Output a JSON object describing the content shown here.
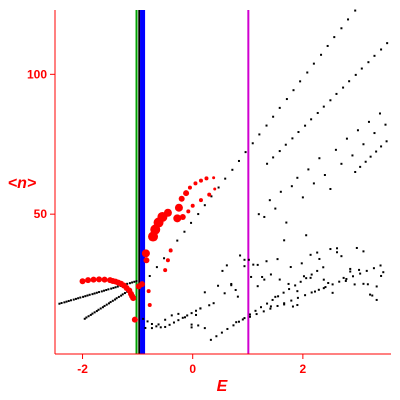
{
  "chart_data": {
    "type": "scatter",
    "xlabel": "E",
    "ylabel": "<n>",
    "xlim": [
      -2.5,
      3.6
    ],
    "ylim": [
      0,
      123
    ],
    "x_ticks": [
      {
        "value": -2,
        "label": "-2"
      },
      {
        "value": 0,
        "label": "0"
      },
      {
        "value": 2,
        "label": "2"
      }
    ],
    "y_ticks": [
      {
        "value": 50,
        "label": "50"
      },
      {
        "value": 100,
        "label": "100"
      }
    ],
    "vertical_lines": [
      {
        "x": -1.02,
        "color": "#00a000",
        "width": 2
      },
      {
        "x": -0.97,
        "color": "#000000",
        "width": 2
      },
      {
        "x": -0.91,
        "color": "#0000ff",
        "width": 5
      },
      {
        "x": 1.01,
        "color": "#d000d0",
        "width": 2
      }
    ],
    "colors": {
      "axis": "#ff0000",
      "black_points": "#000000",
      "red_points": "#ff0000"
    },
    "red_points": [
      [
        -2.0,
        26.0,
        3
      ],
      [
        -1.9,
        26.4,
        3
      ],
      [
        -1.8,
        26.6,
        3
      ],
      [
        -1.7,
        26.7,
        3
      ],
      [
        -1.6,
        26.6,
        3
      ],
      [
        -1.5,
        26.4,
        3
      ],
      [
        -1.45,
        26.1,
        3
      ],
      [
        -1.4,
        25.9,
        3
      ],
      [
        -1.35,
        25.5,
        3
      ],
      [
        -1.3,
        25.1,
        3
      ],
      [
        -1.25,
        24.5,
        3
      ],
      [
        -1.2,
        23.6,
        3
      ],
      [
        -1.15,
        22.7,
        3
      ],
      [
        -1.12,
        21.5,
        3
      ],
      [
        -1.1,
        20.7,
        3
      ],
      [
        -1.08,
        20.0,
        3
      ],
      [
        -1.05,
        12.3,
        3
      ],
      [
        -0.98,
        24.2,
        3
      ],
      [
        -0.92,
        25.0,
        3
      ],
      [
        -0.85,
        36.0,
        4
      ],
      [
        -0.84,
        33.5,
        3
      ],
      [
        -0.8,
        22.5,
        2
      ],
      [
        -0.78,
        17.5,
        2
      ],
      [
        -0.72,
        42.0,
        5
      ],
      [
        -0.68,
        44.5,
        5
      ],
      [
        -0.62,
        47.0,
        5
      ],
      [
        -0.55,
        49.0,
        5
      ],
      [
        -0.45,
        50.5,
        4
      ],
      [
        -0.5,
        30.0,
        2
      ],
      [
        -0.45,
        33.5,
        2
      ],
      [
        -0.4,
        37.0,
        2
      ],
      [
        -0.28,
        48.5,
        4
      ],
      [
        -0.25,
        52.3,
        4
      ],
      [
        -0.2,
        55.5,
        3
      ],
      [
        -0.18,
        49.0,
        3
      ],
      [
        -0.12,
        57.5,
        3
      ],
      [
        -0.08,
        51.0,
        2
      ],
      [
        -0.05,
        59.5,
        2
      ],
      [
        0.0,
        53.0,
        2
      ],
      [
        0.05,
        61.0,
        2
      ],
      [
        0.15,
        62.0,
        2
      ],
      [
        0.15,
        55.0,
        2
      ],
      [
        0.25,
        62.8,
        2
      ],
      [
        0.3,
        57.0,
        2
      ],
      [
        0.38,
        63.0,
        1.5
      ],
      [
        0.4,
        59.0,
        1.5
      ]
    ],
    "black_points": [
      [
        -2.42,
        17.98
      ],
      [
        -2.38,
        18.23
      ],
      [
        -2.33,
        18.47
      ],
      [
        -2.29,
        18.72
      ],
      [
        -2.25,
        18.96
      ],
      [
        -2.21,
        19.21
      ],
      [
        -2.16,
        19.45
      ],
      [
        -2.12,
        19.7
      ],
      [
        -2.08,
        19.94
      ],
      [
        -2.04,
        20.19
      ],
      [
        -1.99,
        20.43
      ],
      [
        -1.95,
        20.68
      ],
      [
        -1.91,
        20.92
      ],
      [
        -1.87,
        21.17
      ],
      [
        -1.82,
        21.41
      ],
      [
        -1.78,
        21.66
      ],
      [
        -1.74,
        21.9
      ],
      [
        -1.7,
        22.15
      ],
      [
        -1.65,
        22.39
      ],
      [
        -1.61,
        22.64
      ],
      [
        -1.57,
        22.88
      ],
      [
        -1.53,
        23.13
      ],
      [
        -1.48,
        23.37
      ],
      [
        -1.44,
        23.62
      ],
      [
        -1.4,
        23.86
      ],
      [
        -1.36,
        24.11
      ],
      [
        -1.31,
        24.35
      ],
      [
        -1.27,
        24.6
      ],
      [
        -1.23,
        24.84
      ],
      [
        -1.19,
        25.09
      ],
      [
        -1.14,
        25.33
      ],
      [
        -1.1,
        25.58
      ],
      [
        -1.06,
        25.82
      ],
      [
        -1.02,
        26.07
      ],
      [
        -1.96,
        12.59
      ],
      [
        -1.93,
        13.05
      ],
      [
        -1.89,
        13.51
      ],
      [
        -1.85,
        13.97
      ],
      [
        -1.82,
        14.43
      ],
      [
        -1.78,
        14.89
      ],
      [
        -1.74,
        15.35
      ],
      [
        -1.71,
        15.81
      ],
      [
        -1.67,
        16.27
      ],
      [
        -1.63,
        16.73
      ],
      [
        -1.6,
        17.19
      ],
      [
        -1.56,
        17.65
      ],
      [
        -1.52,
        18.11
      ],
      [
        -1.49,
        18.57
      ],
      [
        -1.45,
        19.03
      ],
      [
        -1.41,
        19.49
      ],
      [
        -1.38,
        19.95
      ],
      [
        -1.34,
        20.41
      ],
      [
        -1.3,
        20.87
      ],
      [
        -1.27,
        21.33
      ],
      [
        -1.23,
        21.79
      ],
      [
        -1.19,
        22.25
      ],
      [
        -0.78,
        27.89
      ],
      [
        -0.65,
        31.07
      ],
      [
        -0.52,
        34.23
      ],
      [
        -0.4,
        37.39
      ],
      [
        -0.28,
        40.55
      ],
      [
        -0.15,
        43.72
      ],
      [
        -0.03,
        46.88
      ],
      [
        0.1,
        50.04
      ],
      [
        0.22,
        53.21
      ],
      [
        0.34,
        56.37
      ],
      [
        0.47,
        59.53
      ],
      [
        0.59,
        62.7
      ],
      [
        0.72,
        65.86
      ],
      [
        0.84,
        69.02
      ],
      [
        0.96,
        72.19
      ],
      [
        1.09,
        75.35
      ],
      [
        1.21,
        78.51
      ],
      [
        1.34,
        81.68
      ],
      [
        1.46,
        84.84
      ],
      [
        1.58,
        88.0
      ],
      [
        1.71,
        91.16
      ],
      [
        1.83,
        94.33
      ],
      [
        1.95,
        97.49
      ],
      [
        2.08,
        100.65
      ],
      [
        2.2,
        103.82
      ],
      [
        2.33,
        106.98
      ],
      [
        2.45,
        110.14
      ],
      [
        2.57,
        113.31
      ],
      [
        2.7,
        116.47
      ],
      [
        2.82,
        119.63
      ],
      [
        2.95,
        122.8
      ],
      [
        1.35,
        68.02
      ],
      [
        1.46,
        70.29
      ],
      [
        1.58,
        72.56
      ],
      [
        1.69,
        74.83
      ],
      [
        1.81,
        77.1
      ],
      [
        1.92,
        79.37
      ],
      [
        2.04,
        81.64
      ],
      [
        2.15,
        83.91
      ],
      [
        2.27,
        86.18
      ],
      [
        2.38,
        88.45
      ],
      [
        2.5,
        90.72
      ],
      [
        2.61,
        92.99
      ],
      [
        2.73,
        95.26
      ],
      [
        2.84,
        97.53
      ],
      [
        2.96,
        99.8
      ],
      [
        3.07,
        102.07
      ],
      [
        3.19,
        104.34
      ],
      [
        3.3,
        106.61
      ],
      [
        3.42,
        108.88
      ],
      [
        3.53,
        111.15
      ],
      [
        2.95,
        65.08
      ],
      [
        3.04,
        66.91
      ],
      [
        3.14,
        68.74
      ],
      [
        3.23,
        70.56
      ],
      [
        3.33,
        72.39
      ],
      [
        3.42,
        74.22
      ],
      [
        3.52,
        76.05
      ],
      [
        -0.9,
        12.56
      ],
      [
        -0.82,
        11.66
      ],
      [
        -0.74,
        10.73
      ],
      [
        -0.66,
        9.89
      ],
      [
        -0.58,
        9.54
      ],
      [
        -0.5,
        9.67
      ],
      [
        -0.42,
        10.43
      ],
      [
        -0.34,
        11.26
      ],
      [
        -0.26,
        12.1
      ],
      [
        -0.18,
        12.94
      ],
      [
        -0.1,
        13.78
      ],
      [
        -0.02,
        14.62
      ],
      [
        0.06,
        15.46
      ],
      [
        0.14,
        16.3
      ],
      [
        -0.86,
        9.31
      ],
      [
        -0.74,
        9.26
      ],
      [
        -0.62,
        10.58
      ],
      [
        -0.5,
        12.25
      ],
      [
        -0.38,
        13.81
      ],
      [
        -0.26,
        14.34
      ],
      [
        -0.14,
        13.13
      ],
      [
        -0.02,
        9.52
      ],
      [
        0.1,
        10.21
      ],
      [
        0.22,
        9.26
      ],
      [
        0.33,
        5.06
      ],
      [
        0.43,
        6.35
      ],
      [
        0.53,
        7.65
      ],
      [
        0.63,
        8.95
      ],
      [
        0.74,
        10.25
      ],
      [
        0.84,
        11.55
      ],
      [
        0.94,
        12.84
      ],
      [
        1.04,
        14.14
      ],
      [
        1.14,
        15.44
      ],
      [
        1.24,
        16.74
      ],
      [
        1.35,
        18.03
      ],
      [
        1.45,
        19.33
      ],
      [
        1.55,
        20.63
      ],
      [
        1.65,
        21.93
      ],
      [
        1.75,
        23.22
      ],
      [
        1.86,
        24.52
      ],
      [
        1.96,
        25.82
      ],
      [
        2.06,
        27.12
      ],
      [
        2.16,
        28.41
      ],
      [
        2.26,
        29.71
      ],
      [
        2.37,
        31.01
      ],
      [
        0.79,
        11.38
      ],
      [
        0.91,
        12.35
      ],
      [
        1.04,
        13.31
      ],
      [
        1.16,
        14.28
      ],
      [
        1.29,
        15.24
      ],
      [
        1.41,
        16.21
      ],
      [
        1.54,
        17.17
      ],
      [
        1.66,
        18.14
      ],
      [
        1.79,
        19.1
      ],
      [
        1.91,
        20.07
      ],
      [
        2.04,
        21.03
      ],
      [
        2.16,
        22.0
      ],
      [
        2.29,
        22.96
      ],
      [
        2.41,
        23.93
      ],
      [
        2.54,
        24.89
      ],
      [
        2.66,
        25.86
      ],
      [
        2.79,
        26.82
      ],
      [
        2.91,
        27.79
      ],
      [
        3.04,
        28.75
      ],
      [
        3.16,
        29.72
      ],
      [
        3.29,
        30.68
      ],
      [
        3.41,
        31.65
      ],
      [
        -0.02,
        10.52
      ],
      [
        0.06,
        13.96
      ],
      [
        0.14,
        16.29
      ],
      [
        0.22,
        22.06
      ],
      [
        0.3,
        17.43
      ],
      [
        0.38,
        18.17
      ],
      [
        0.46,
        24.4
      ],
      [
        0.54,
        29.71
      ],
      [
        0.62,
        31.69
      ],
      [
        0.7,
        25.04
      ],
      [
        0.78,
        22.89
      ],
      [
        0.86,
        35.23
      ],
      [
        0.94,
        33.68
      ],
      [
        1.02,
        33.69
      ],
      [
        1.1,
        31.95
      ],
      [
        1.18,
        31.86
      ],
      [
        1.26,
        27.54
      ],
      [
        1.34,
        33.17
      ],
      [
        1.42,
        17.02
      ],
      [
        1.5,
        20.43
      ],
      [
        1.58,
        26.62
      ],
      [
        1.66,
        40.65
      ],
      [
        1.74,
        25.05
      ],
      [
        1.82,
        16.98
      ],
      [
        1.9,
        17.51
      ],
      [
        1.98,
        32.42
      ],
      [
        2.06,
        42.46
      ],
      [
        2.14,
        27.23
      ],
      [
        2.22,
        22.33
      ],
      [
        2.3,
        33.98
      ],
      [
        2.38,
        26.58
      ],
      [
        2.46,
        25.39
      ],
      [
        2.54,
        21.87
      ],
      [
        2.62,
        37.8
      ],
      [
        2.7,
        34.98
      ],
      [
        2.78,
        26.12
      ],
      [
        2.86,
        29.49
      ],
      [
        2.94,
        24.88
      ],
      [
        3.02,
        30.07
      ],
      [
        3.1,
        36.7
      ],
      [
        3.18,
        24.93
      ],
      [
        3.26,
        20.91
      ],
      [
        3.34,
        24.15
      ],
      [
        3.42,
        27.91
      ],
      [
        0.58,
        21.71
      ],
      [
        0.7,
        24.6
      ],
      [
        0.82,
        20.51
      ],
      [
        0.94,
        31.4
      ],
      [
        1.06,
        27.55
      ],
      [
        1.18,
        24.25
      ],
      [
        1.3,
        26.6
      ],
      [
        1.42,
        28.44
      ],
      [
        1.54,
        33.93
      ],
      [
        1.66,
        17.72
      ],
      [
        1.78,
        31.1
      ],
      [
        1.9,
        22.47
      ],
      [
        2.02,
        27.8
      ],
      [
        2.14,
        35.46
      ],
      [
        2.26,
        36.27
      ],
      [
        2.38,
        23.54
      ],
      [
        2.5,
        37.53
      ],
      [
        2.62,
        36.38
      ],
      [
        2.74,
        27.21
      ],
      [
        2.86,
        30.42
      ],
      [
        2.98,
        37.91
      ],
      [
        3.1,
        25.09
      ],
      [
        3.22,
        21.24
      ],
      [
        3.34,
        19.33
      ],
      [
        3.46,
        29.25
      ],
      [
        1.2,
        50.0
      ],
      [
        1.3,
        49.0
      ],
      [
        1.4,
        55.0
      ],
      [
        1.5,
        52.0
      ],
      [
        1.6,
        58.0
      ],
      [
        1.7,
        47.0
      ],
      [
        1.8,
        60.0
      ],
      [
        1.9,
        63.0
      ],
      [
        2.0,
        56.0
      ],
      [
        2.1,
        66.0
      ],
      [
        2.2,
        61.0
      ],
      [
        2.3,
        70.0
      ],
      [
        2.4,
        64.0
      ],
      [
        2.5,
        59.0
      ],
      [
        2.6,
        73.0
      ],
      [
        2.7,
        68.0
      ],
      [
        2.8,
        77.0
      ],
      [
        2.9,
        71.0
      ],
      [
        3.0,
        80.0
      ],
      [
        3.1,
        75.0
      ],
      [
        3.2,
        83.0
      ],
      [
        3.3,
        79.0
      ],
      [
        3.4,
        86.0
      ],
      [
        3.5,
        82.0
      ]
    ]
  }
}
